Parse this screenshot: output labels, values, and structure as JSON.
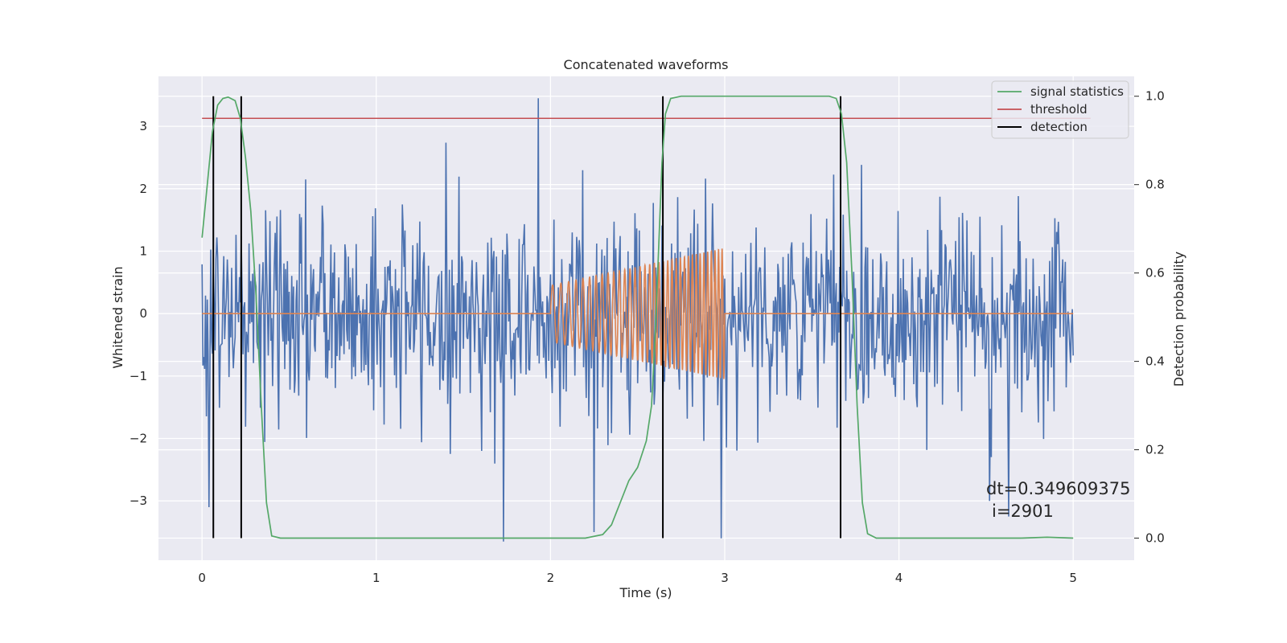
{
  "chart_data": {
    "type": "line",
    "title": "Concatenated waveforms",
    "xlabel": "Time (s)",
    "ylabel": "Whitened strain",
    "y2label": "Detection probability",
    "xlim": [
      -0.25,
      5.35
    ],
    "ylim": [
      -3.95,
      3.8
    ],
    "y2lim": [
      -0.05,
      1.045
    ],
    "x_ticks": [
      "0",
      "1",
      "2",
      "3",
      "4",
      "5"
    ],
    "y_ticks": [
      "3",
      "2",
      "1",
      "0",
      "−1",
      "−2",
      "−3"
    ],
    "y2_ticks": [
      "1.0",
      "0.8",
      "0.6",
      "0.4",
      "0.2",
      "0.0"
    ],
    "grid": true,
    "legend_position": "top-right",
    "colors": {
      "strain": "#4c72b0",
      "template": "#dd8452",
      "signal_statistics": "#55a868",
      "threshold": "#c44e52",
      "detection": "#000000",
      "background": "#eaeaf2"
    },
    "series": [
      {
        "name": "",
        "axis": "left",
        "description_kind": "noise",
        "x_range": [
          0,
          5
        ],
        "sample_step": 0.005,
        "sigma": 0.85,
        "extremes": [
          {
            "x": 1.93,
            "y": 3.45
          },
          {
            "x": 1.73,
            "y": -3.65
          },
          {
            "x": 2.98,
            "y": -3.6
          },
          {
            "x": 0.04,
            "y": -3.1
          },
          {
            "x": 4.63,
            "y": -3.25
          },
          {
            "x": 4.52,
            "y": -3.0
          },
          {
            "x": 2.25,
            "y": -3.5
          }
        ]
      },
      {
        "name": "",
        "axis": "left",
        "description_kind": "chirp",
        "x_range": [
          0,
          5
        ],
        "chirp_start": 2.0,
        "chirp_end": 3.0,
        "amp_start": 0.45,
        "amp_end": 1.05,
        "freq_start": 20,
        "freq_end": 50
      },
      {
        "name": "signal statistics",
        "axis": "right",
        "points": [
          [
            0.0,
            0.68
          ],
          [
            0.03,
            0.8
          ],
          [
            0.06,
            0.92
          ],
          [
            0.09,
            0.98
          ],
          [
            0.12,
            0.995
          ],
          [
            0.15,
            0.998
          ],
          [
            0.19,
            0.99
          ],
          [
            0.22,
            0.95
          ],
          [
            0.25,
            0.86
          ],
          [
            0.28,
            0.74
          ],
          [
            0.31,
            0.55
          ],
          [
            0.34,
            0.3
          ],
          [
            0.37,
            0.08
          ],
          [
            0.4,
            0.005
          ],
          [
            0.45,
            0.0
          ],
          [
            2.2,
            0.0
          ],
          [
            2.3,
            0.008
          ],
          [
            2.35,
            0.03
          ],
          [
            2.4,
            0.08
          ],
          [
            2.45,
            0.13
          ],
          [
            2.5,
            0.16
          ],
          [
            2.55,
            0.22
          ],
          [
            2.58,
            0.3
          ],
          [
            2.6,
            0.45
          ],
          [
            2.62,
            0.65
          ],
          [
            2.64,
            0.85
          ],
          [
            2.66,
            0.96
          ],
          [
            2.69,
            0.995
          ],
          [
            2.75,
            1.0
          ],
          [
            3.6,
            1.0
          ],
          [
            3.64,
            0.995
          ],
          [
            3.67,
            0.96
          ],
          [
            3.7,
            0.85
          ],
          [
            3.73,
            0.6
          ],
          [
            3.76,
            0.3
          ],
          [
            3.79,
            0.08
          ],
          [
            3.82,
            0.01
          ],
          [
            3.87,
            0.0
          ],
          [
            4.7,
            0.0
          ],
          [
            4.85,
            0.002
          ],
          [
            5.0,
            0.0
          ]
        ]
      },
      {
        "name": "threshold",
        "axis": "right",
        "points": [
          [
            0.0,
            0.95
          ],
          [
            5.1,
            0.95
          ]
        ]
      },
      {
        "name": "detection",
        "axis": "right",
        "vlines": [
          0.065,
          0.225,
          2.645,
          3.665
        ],
        "vline_range": [
          0.0,
          1.0
        ]
      }
    ],
    "legend": [
      "signal statistics",
      "threshold",
      "detection"
    ],
    "annotations": [
      "dt=0.349609375",
      "i=2901"
    ]
  }
}
